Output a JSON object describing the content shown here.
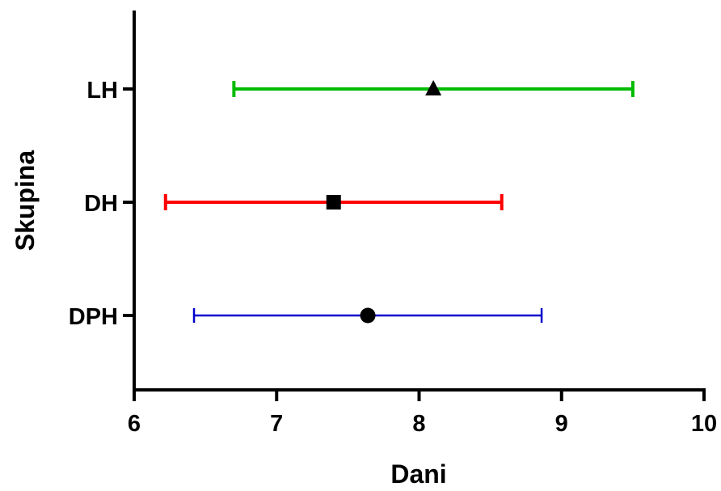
{
  "chart_data": {
    "type": "scatter",
    "title": "",
    "xlabel": "Dani",
    "ylabel": "Skupina",
    "xlim": [
      6,
      10
    ],
    "x_ticks": [
      "6",
      "7",
      "8",
      "9",
      "10"
    ],
    "categories": [
      "LH",
      "DH",
      "DPH"
    ],
    "grid": false,
    "legend": "none",
    "series": [
      {
        "category": "LH",
        "mean": 8.1,
        "low": 6.7,
        "high": 9.5,
        "marker": "triangle",
        "color": "#00bb00"
      },
      {
        "category": "DH",
        "mean": 7.4,
        "low": 6.22,
        "high": 8.58,
        "marker": "square",
        "color": "#ff0000"
      },
      {
        "category": "DPH",
        "mean": 7.64,
        "low": 6.42,
        "high": 8.86,
        "marker": "circle",
        "color": "#0000cc"
      }
    ]
  }
}
